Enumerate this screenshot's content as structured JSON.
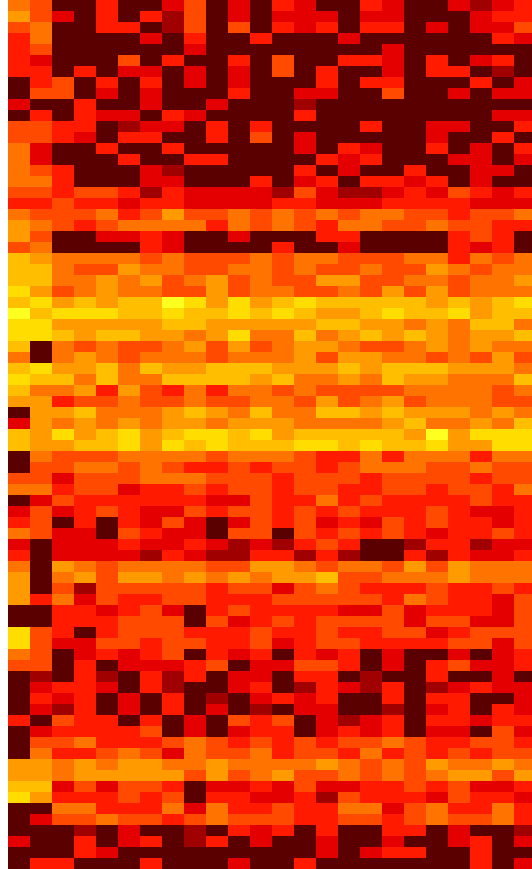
{
  "chart_data": {
    "type": "heatmap",
    "title": "",
    "xlabel": "",
    "ylabel": "",
    "colormap": "hot",
    "vmin": 0,
    "vmax": 1,
    "n_cols": 24,
    "n_rows": 79,
    "palette": [
      "#0a0000",
      "#5a0000",
      "#a00000",
      "#e40000",
      "#ff1a00",
      "#ff4a00",
      "#ff7300",
      "#ff9a00",
      "#ffbe00",
      "#ffdd00",
      "#ffff20"
    ],
    "seed_rows": [
      [
        0.6,
        0.55,
        0.05,
        0.05,
        0.45,
        0.05,
        0.05,
        0.3,
        0.45,
        0.1,
        0.4,
        0.05,
        0.3,
        0.2,
        0.05,
        0.05,
        0.4,
        0.35,
        0.05,
        0.05,
        0.05,
        0.2,
        0.35,
        0.4
      ],
      [
        0.45,
        0.6,
        0.05,
        0.05,
        0.05,
        0.05,
        0.05,
        0.05,
        0.4,
        0.05,
        0.05,
        0.05,
        0.05,
        0.05,
        0.05,
        0.05,
        0.05,
        0.05,
        0.05,
        0.05,
        0.05,
        0.05,
        0.05,
        0.05
      ],
      [
        0.4,
        0.35,
        0.05,
        0.05,
        0.05,
        0.4,
        0.05,
        0.05,
        0.05,
        0.05,
        0.35,
        0.05,
        0.4,
        0.05,
        0.05,
        0.05,
        0.05,
        0.35,
        0.05,
        0.3,
        0.05,
        0.05,
        0.3,
        0.05
      ],
      [
        0.05,
        0.45,
        0.4,
        0.05,
        0.35,
        0.05,
        0.4,
        0.05,
        0.05,
        0.05,
        0.05,
        0.05,
        0.05,
        0.05,
        0.35,
        0.05,
        0.05,
        0.4,
        0.05,
        0.05,
        0.05,
        0.05,
        0.05,
        0.4
      ],
      [
        0.05,
        0.05,
        0.05,
        0.05,
        0.05,
        0.05,
        0.05,
        0.05,
        0.05,
        0.05,
        0.05,
        0.05,
        0.05,
        0.35,
        0.05,
        0.05,
        0.05,
        0.05,
        0.05,
        0.05,
        0.05,
        0.05,
        0.05,
        0.05
      ],
      [
        0.55,
        0.5,
        0.3,
        0.35,
        0.05,
        0.35,
        0.05,
        0.05,
        0.05,
        0.35,
        0.05,
        0.35,
        0.05,
        0.05,
        0.05,
        0.05,
        0.05,
        0.05,
        0.05,
        0.35,
        0.05,
        0.05,
        0.05,
        0.05
      ],
      [
        0.55,
        0.4,
        0.05,
        0.05,
        0.05,
        0.05,
        0.05,
        0.05,
        0.05,
        0.05,
        0.05,
        0.05,
        0.05,
        0.05,
        0.05,
        0.4,
        0.35,
        0.05,
        0.05,
        0.05,
        0.05,
        0.35,
        0.05,
        0.35
      ],
      [
        0.55,
        0.55,
        0.35,
        0.05,
        0.05,
        0.05,
        0.35,
        0.3,
        0.05,
        0.05,
        0.05,
        0.05,
        0.05,
        0.35,
        0.05,
        0.05,
        0.05,
        0.05,
        0.05,
        0.05,
        0.05,
        0.05,
        0.05,
        0.05
      ],
      [
        0.5,
        0.5,
        0.4,
        0.45,
        0.4,
        0.4,
        0.35,
        0.35,
        0.35,
        0.4,
        0.4,
        0.3,
        0.3,
        0.4,
        0.4,
        0.35,
        0.3,
        0.35,
        0.4,
        0.35,
        0.4,
        0.3,
        0.35,
        0.35
      ],
      [
        0.65,
        0.55,
        0.55,
        0.5,
        0.55,
        0.5,
        0.5,
        0.55,
        0.55,
        0.5,
        0.55,
        0.55,
        0.55,
        0.5,
        0.55,
        0.6,
        0.55,
        0.5,
        0.55,
        0.55,
        0.5,
        0.55,
        0.5,
        0.55
      ],
      [
        0.6,
        0.55,
        0.05,
        0.05,
        0.05,
        0.05,
        0.4,
        0.35,
        0.05,
        0.05,
        0.05,
        0.05,
        0.05,
        0.05,
        0.05,
        0.35,
        0.05,
        0.05,
        0.05,
        0.05,
        0.35,
        0.4,
        0.05,
        0.05
      ],
      [
        0.75,
        0.7,
        0.6,
        0.6,
        0.55,
        0.6,
        0.55,
        0.55,
        0.5,
        0.55,
        0.55,
        0.55,
        0.5,
        0.6,
        0.55,
        0.55,
        0.55,
        0.55,
        0.55,
        0.6,
        0.55,
        0.55,
        0.6,
        0.55
      ],
      [
        0.8,
        0.75,
        0.6,
        0.6,
        0.65,
        0.6,
        0.6,
        0.55,
        0.6,
        0.6,
        0.55,
        0.6,
        0.6,
        0.55,
        0.6,
        0.65,
        0.6,
        0.6,
        0.55,
        0.6,
        0.6,
        0.55,
        0.6,
        0.6
      ],
      [
        0.9,
        0.85,
        0.8,
        0.85,
        0.8,
        0.85,
        0.8,
        0.85,
        0.8,
        0.75,
        0.85,
        0.8,
        0.8,
        0.85,
        0.8,
        0.75,
        0.8,
        0.85,
        0.8,
        0.8,
        0.85,
        0.8,
        0.8,
        0.85
      ],
      [
        0.85,
        0.8,
        0.7,
        0.75,
        0.7,
        0.75,
        0.7,
        0.75,
        0.7,
        0.7,
        0.75,
        0.7,
        0.7,
        0.75,
        0.7,
        0.7,
        0.75,
        0.7,
        0.7,
        0.75,
        0.7,
        0.7,
        0.75,
        0.7
      ],
      [
        0.75,
        0.05,
        0.65,
        0.6,
        0.65,
        0.6,
        0.6,
        0.65,
        0.6,
        0.6,
        0.65,
        0.6,
        0.6,
        0.65,
        0.6,
        0.6,
        0.65,
        0.6,
        0.6,
        0.65,
        0.6,
        0.6,
        0.65,
        0.6
      ],
      [
        0.8,
        0.75,
        0.75,
        0.7,
        0.75,
        0.7,
        0.7,
        0.75,
        0.7,
        0.75,
        0.7,
        0.7,
        0.75,
        0.7,
        0.7,
        0.75,
        0.7,
        0.7,
        0.75,
        0.7,
        0.7,
        0.75,
        0.7,
        0.7
      ],
      [
        0.7,
        0.65,
        0.55,
        0.6,
        0.55,
        0.6,
        0.55,
        0.55,
        0.6,
        0.55,
        0.55,
        0.6,
        0.55,
        0.55,
        0.6,
        0.55,
        0.55,
        0.6,
        0.55,
        0.55,
        0.6,
        0.55,
        0.55,
        0.6
      ],
      [
        0.05,
        0.7,
        0.65,
        0.7,
        0.65,
        0.7,
        0.65,
        0.65,
        0.7,
        0.65,
        0.65,
        0.7,
        0.65,
        0.65,
        0.7,
        0.65,
        0.65,
        0.7,
        0.65,
        0.65,
        0.7,
        0.65,
        0.65,
        0.7
      ],
      [
        0.8,
        0.75,
        0.8,
        0.8,
        0.85,
        0.8,
        0.8,
        0.85,
        0.8,
        0.8,
        0.85,
        0.8,
        0.8,
        0.85,
        0.8,
        0.8,
        0.85,
        0.8,
        0.8,
        0.85,
        0.8,
        0.8,
        0.85,
        0.8
      ],
      [
        0.05,
        0.55,
        0.5,
        0.5,
        0.55,
        0.5,
        0.5,
        0.55,
        0.5,
        0.5,
        0.55,
        0.5,
        0.5,
        0.55,
        0.5,
        0.5,
        0.55,
        0.5,
        0.5,
        0.55,
        0.5,
        0.5,
        0.55,
        0.5
      ],
      [
        0.55,
        0.5,
        0.3,
        0.45,
        0.5,
        0.45,
        0.5,
        0.45,
        0.5,
        0.45,
        0.45,
        0.5,
        0.45,
        0.45,
        0.5,
        0.45,
        0.45,
        0.5,
        0.45,
        0.45,
        0.5,
        0.45,
        0.45,
        0.5
      ],
      [
        0.05,
        0.45,
        0.4,
        0.45,
        0.4,
        0.45,
        0.4,
        0.4,
        0.45,
        0.4,
        0.4,
        0.45,
        0.4,
        0.4,
        0.45,
        0.4,
        0.4,
        0.45,
        0.4,
        0.4,
        0.45,
        0.4,
        0.4,
        0.45
      ],
      [
        0.5,
        0.4,
        0.05,
        0.4,
        0.05,
        0.4,
        0.4,
        0.45,
        0.4,
        0.05,
        0.4,
        0.45,
        0.05,
        0.4,
        0.45,
        0.4,
        0.4,
        0.45,
        0.4,
        0.4,
        0.45,
        0.4,
        0.4,
        0.45
      ],
      [
        0.4,
        0.05,
        0.35,
        0.35,
        0.3,
        0.35,
        0.3,
        0.3,
        0.35,
        0.3,
        0.3,
        0.35,
        0.3,
        0.3,
        0.35,
        0.3,
        0.05,
        0.05,
        0.3,
        0.3,
        0.35,
        0.3,
        0.3,
        0.35
      ],
      [
        0.7,
        0.05,
        0.6,
        0.65,
        0.6,
        0.65,
        0.6,
        0.6,
        0.65,
        0.6,
        0.6,
        0.65,
        0.6,
        0.6,
        0.65,
        0.6,
        0.6,
        0.65,
        0.6,
        0.6,
        0.65,
        0.6,
        0.6,
        0.65
      ],
      [
        0.6,
        0.05,
        0.5,
        0.3,
        0.5,
        0.45,
        0.5,
        0.45,
        0.5,
        0.45,
        0.45,
        0.5,
        0.45,
        0.45,
        0.5,
        0.45,
        0.45,
        0.5,
        0.45,
        0.45,
        0.5,
        0.45,
        0.45,
        0.5
      ],
      [
        0.05,
        0.05,
        0.45,
        0.45,
        0.4,
        0.45,
        0.4,
        0.4,
        0.05,
        0.4,
        0.4,
        0.45,
        0.4,
        0.4,
        0.45,
        0.4,
        0.4,
        0.45,
        0.4,
        0.4,
        0.45,
        0.4,
        0.4,
        0.45
      ],
      [
        0.85,
        0.45,
        0.4,
        0.05,
        0.4,
        0.45,
        0.4,
        0.4,
        0.45,
        0.4,
        0.4,
        0.45,
        0.4,
        0.4,
        0.45,
        0.4,
        0.4,
        0.45,
        0.4,
        0.4,
        0.45,
        0.4,
        0.4,
        0.45
      ],
      [
        0.5,
        0.45,
        0.05,
        0.35,
        0.05,
        0.35,
        0.35,
        0.4,
        0.05,
        0.35,
        0.05,
        0.35,
        0.05,
        0.35,
        0.4,
        0.35,
        0.05,
        0.4,
        0.05,
        0.05,
        0.4,
        0.05,
        0.35,
        0.4
      ],
      [
        0.05,
        0.3,
        0.05,
        0.05,
        0.3,
        0.05,
        0.05,
        0.3,
        0.05,
        0.05,
        0.3,
        0.05,
        0.05,
        0.3,
        0.05,
        0.05,
        0.3,
        0.05,
        0.05,
        0.3,
        0.05,
        0.05,
        0.3,
        0.05
      ],
      [
        0.05,
        0.4,
        0.3,
        0.35,
        0.05,
        0.35,
        0.05,
        0.05,
        0.05,
        0.3,
        0.05,
        0.35,
        0.05,
        0.3,
        0.35,
        0.05,
        0.05,
        0.35,
        0.05,
        0.3,
        0.35,
        0.05,
        0.05,
        0.35
      ],
      [
        0.05,
        0.05,
        0.4,
        0.35,
        0.4,
        0.05,
        0.4,
        0.05,
        0.05,
        0.05,
        0.4,
        0.35,
        0.4,
        0.05,
        0.4,
        0.35,
        0.4,
        0.35,
        0.05,
        0.35,
        0.4,
        0.05,
        0.4,
        0.35
      ],
      [
        0.05,
        0.5,
        0.45,
        0.5,
        0.45,
        0.5,
        0.45,
        0.45,
        0.5,
        0.45,
        0.45,
        0.5,
        0.45,
        0.45,
        0.5,
        0.45,
        0.45,
        0.5,
        0.45,
        0.45,
        0.5,
        0.45,
        0.45,
        0.5
      ],
      [
        0.7,
        0.65,
        0.6,
        0.65,
        0.6,
        0.65,
        0.6,
        0.6,
        0.65,
        0.6,
        0.6,
        0.65,
        0.6,
        0.6,
        0.65,
        0.6,
        0.6,
        0.65,
        0.6,
        0.6,
        0.65,
        0.6,
        0.6,
        0.65
      ],
      [
        0.85,
        0.7,
        0.35,
        0.4,
        0.35,
        0.4,
        0.4,
        0.35,
        0.05,
        0.35,
        0.4,
        0.4,
        0.35,
        0.4,
        0.35,
        0.4,
        0.4,
        0.35,
        0.4,
        0.35,
        0.4,
        0.4,
        0.35,
        0.4
      ],
      [
        0.05,
        0.05,
        0.5,
        0.45,
        0.5,
        0.45,
        0.45,
        0.5,
        0.45,
        0.45,
        0.5,
        0.45,
        0.45,
        0.5,
        0.45,
        0.45,
        0.5,
        0.45,
        0.45,
        0.5,
        0.45,
        0.45,
        0.5,
        0.45
      ],
      [
        0.05,
        0.05,
        0.05,
        0.3,
        0.05,
        0.3,
        0.05,
        0.05,
        0.3,
        0.05,
        0.05,
        0.3,
        0.05,
        0.05,
        0.3,
        0.05,
        0.05,
        0.3,
        0.05,
        0.05,
        0.3,
        0.05,
        0.05,
        0.3
      ],
      [
        0.05,
        0.05,
        0.05,
        0.05,
        0.05,
        0.05,
        0.05,
        0.05,
        0.05,
        0.05,
        0.05,
        0.05,
        0.05,
        0.05,
        0.05,
        0.05,
        0.05,
        0.05,
        0.05,
        0.05,
        0.05,
        0.05,
        0.05,
        0.05
      ]
    ]
  }
}
